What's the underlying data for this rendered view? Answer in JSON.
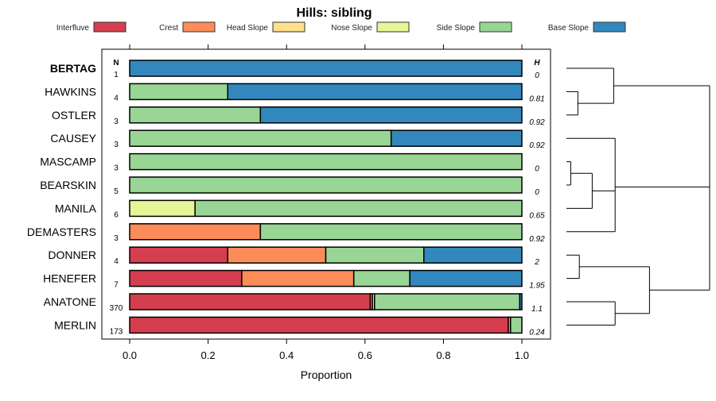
{
  "chart_data": {
    "type": "bar",
    "orientation": "horizontal-stacked",
    "title": "Hills: sibling",
    "xlabel": "Proportion",
    "xlim": [
      0,
      1
    ],
    "xticks": [
      "0.0",
      "0.2",
      "0.4",
      "0.6",
      "0.8",
      "1.0"
    ],
    "xtick_values": [
      0,
      0.2,
      0.4,
      0.6,
      0.8,
      1.0
    ],
    "n_header": "N",
    "h_header": "H",
    "legend_position": "top",
    "series": [
      {
        "name": "Interfluve",
        "color": "#D53E4F"
      },
      {
        "name": "Crest",
        "color": "#FC8D59"
      },
      {
        "name": "Head Slope",
        "color": "#FEE08B"
      },
      {
        "name": "Nose Slope",
        "color": "#E6F598"
      },
      {
        "name": "Side Slope",
        "color": "#99D594"
      },
      {
        "name": "Base Slope",
        "color": "#3288BD"
      }
    ],
    "rows": [
      {
        "name": "BERTAG",
        "n": "1",
        "h": "0",
        "bold": true,
        "values": [
          0,
          0,
          0,
          0,
          0,
          1
        ]
      },
      {
        "name": "HAWKINS",
        "n": "4",
        "h": "0.81",
        "values": [
          0,
          0,
          0,
          0,
          0.25,
          0.75
        ]
      },
      {
        "name": "OSTLER",
        "n": "3",
        "h": "0.92",
        "values": [
          0,
          0,
          0,
          0,
          0.3333,
          0.6667
        ]
      },
      {
        "name": "CAUSEY",
        "n": "3",
        "h": "0.92",
        "values": [
          0,
          0,
          0,
          0,
          0.6667,
          0.3333
        ]
      },
      {
        "name": "MASCAMP",
        "n": "3",
        "h": "0",
        "values": [
          0,
          0,
          0,
          0,
          1,
          0
        ]
      },
      {
        "name": "BEARSKIN",
        "n": "5",
        "h": "0",
        "values": [
          0,
          0,
          0,
          0,
          1,
          0
        ]
      },
      {
        "name": "MANILA",
        "n": "6",
        "h": "0.65",
        "values": [
          0,
          0,
          0,
          0.1667,
          0.8333,
          0
        ]
      },
      {
        "name": "DEMASTERS",
        "n": "3",
        "h": "0.92",
        "values": [
          0,
          0.3333,
          0,
          0,
          0.6667,
          0
        ]
      },
      {
        "name": "DONNER",
        "n": "4",
        "h": "2",
        "values": [
          0.25,
          0.25,
          0,
          0,
          0.25,
          0.25
        ]
      },
      {
        "name": "HENEFER",
        "n": "7",
        "h": "1.95",
        "values": [
          0.2857,
          0.2857,
          0,
          0,
          0.1429,
          0.2857
        ]
      },
      {
        "name": "ANATONE",
        "n": "370",
        "h": "1.1",
        "values": [
          0.6135,
          0.0054,
          0.0054,
          0,
          0.3703,
          0.0054
        ]
      },
      {
        "name": "MERLIN",
        "n": "173",
        "h": "0.24",
        "values": [
          0.9653,
          0.0058,
          0,
          0,
          0.0289,
          0
        ]
      }
    ],
    "dendrogram": {
      "h": 1,
      "children": [
        {
          "h": 0.33,
          "children": [
            {
              "leaf": 0
            },
            {
              "h": 0.08,
              "children": [
                {
                  "leaf": 1
                },
                {
                  "leaf": 2
                }
              ]
            }
          ]
        },
        {
          "h": 0.34,
          "children": [
            {
              "leaf": 3
            },
            {
              "h": 0.18,
              "children": [
                {
                  "h": 0.03,
                  "children": [
                    {
                      "leaf": 4
                    },
                    {
                      "leaf": 5
                    }
                  ]
                },
                {
                  "leaf": 6
                }
              ]
            },
            {
              "leaf": 7
            }
          ]
        },
        {
          "h": 0.58,
          "children": [
            {
              "h": 0.09,
              "children": [
                {
                  "leaf": 8
                },
                {
                  "leaf": 9
                }
              ]
            },
            {
              "h": 0.34,
              "children": [
                {
                  "leaf": 10
                },
                {
                  "leaf": 11
                }
              ]
            }
          ]
        }
      ]
    }
  }
}
